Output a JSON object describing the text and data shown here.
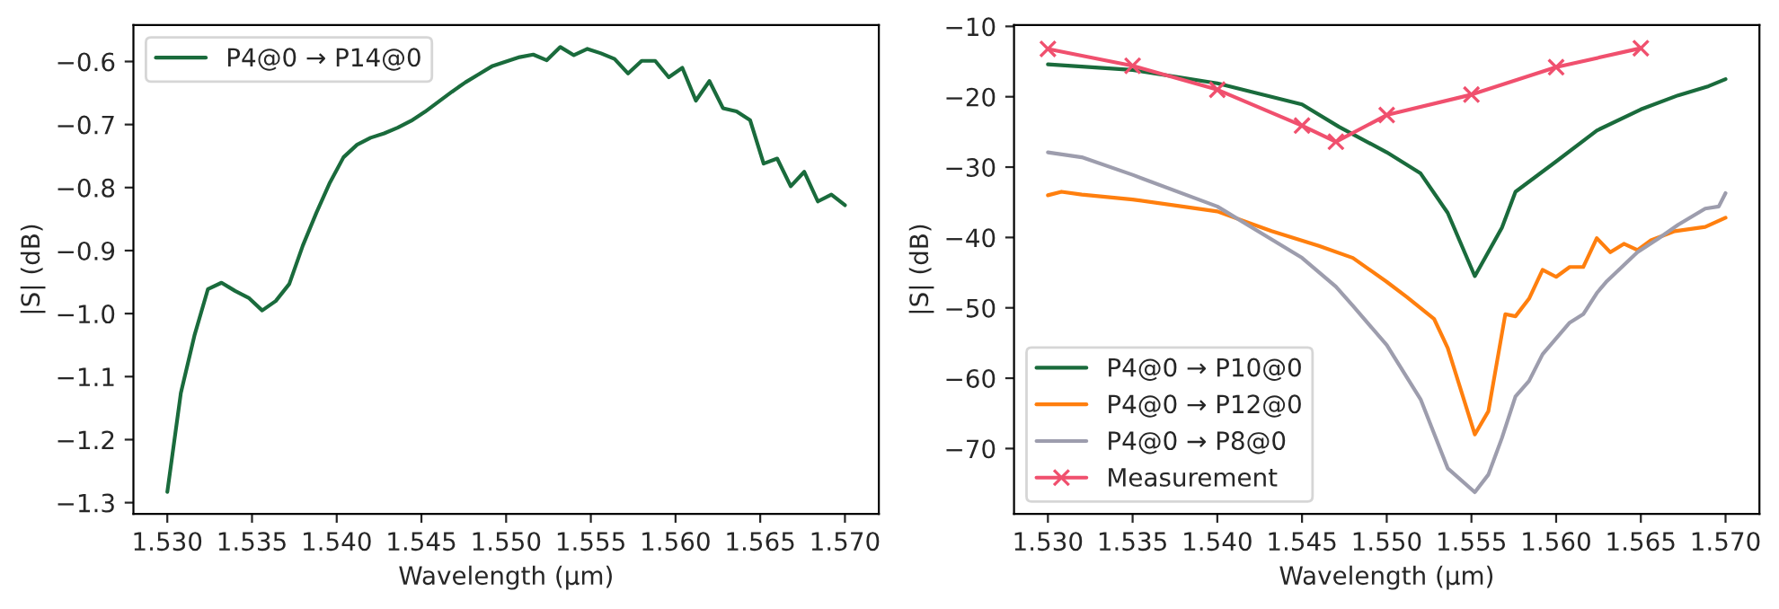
{
  "chart_data": [
    {
      "type": "line",
      "xlabel": "Wavelength (µm)",
      "ylabel": "|S| (dB)",
      "legend": "top left",
      "xlim": [
        1.528,
        1.572
      ],
      "xticks": [
        {
          "value": 1.53,
          "label": "1.530"
        },
        {
          "value": 1.535,
          "label": "1.535"
        },
        {
          "value": 1.54,
          "label": "1.540"
        },
        {
          "value": 1.545,
          "label": "1.545"
        },
        {
          "value": 1.55,
          "label": "1.550"
        },
        {
          "value": 1.555,
          "label": "1.555"
        },
        {
          "value": 1.56,
          "label": "1.560"
        },
        {
          "value": 1.565,
          "label": "1.565"
        },
        {
          "value": 1.57,
          "label": "1.570"
        }
      ],
      "ylim": [
        -1.318,
        -0.542
      ],
      "yticks": [
        {
          "value": -1.3,
          "label": "−1.3"
        },
        {
          "value": -1.2,
          "label": "−1.2"
        },
        {
          "value": -1.1,
          "label": "−1.1"
        },
        {
          "value": -1.0,
          "label": "−1.0"
        },
        {
          "value": -0.9,
          "label": "−0.9"
        },
        {
          "value": -0.8,
          "label": "−0.8"
        },
        {
          "value": -0.7,
          "label": "−0.7"
        },
        {
          "value": -0.6,
          "label": "−0.6"
        }
      ],
      "x": [
        1.53,
        1.5308,
        1.5316,
        1.5324,
        1.5332,
        1.534,
        1.5348,
        1.5356,
        1.5364,
        1.5372,
        1.538,
        1.5388,
        1.5396,
        1.5404,
        1.5412,
        1.542,
        1.5428,
        1.5436,
        1.5444,
        1.5452,
        1.546,
        1.5468,
        1.5476,
        1.5484,
        1.5492,
        1.55,
        1.5508,
        1.5516,
        1.5524,
        1.5532,
        1.554,
        1.5548,
        1.5556,
        1.5564,
        1.5572,
        1.558,
        1.5588,
        1.5596,
        1.5604,
        1.5612,
        1.562,
        1.5628,
        1.5636,
        1.5644,
        1.5652,
        1.566,
        1.5668,
        1.5676,
        1.5684,
        1.5692,
        1.57
      ],
      "series": [
        {
          "name": "P4@0 → P14@0",
          "color": "#1a6b3c",
          "values": [
            -1.283,
            -1.126,
            -1.035,
            -0.961,
            -0.951,
            -0.964,
            -0.975,
            -0.995,
            -0.98,
            -0.953,
            -0.892,
            -0.84,
            -0.792,
            -0.752,
            -0.732,
            -0.721,
            -0.714,
            -0.705,
            -0.694,
            -0.68,
            -0.664,
            -0.648,
            -0.633,
            -0.62,
            -0.607,
            -0.6,
            -0.593,
            -0.589,
            -0.598,
            -0.577,
            -0.59,
            -0.58,
            -0.587,
            -0.596,
            -0.619,
            -0.599,
            -0.599,
            -0.625,
            -0.61,
            -0.662,
            -0.631,
            -0.674,
            -0.679,
            -0.693,
            -0.762,
            -0.754,
            -0.798,
            -0.775,
            -0.822,
            -0.811,
            -0.828
          ]
        }
      ]
    },
    {
      "type": "line",
      "xlabel": "Wavelength (µm)",
      "ylabel": "|S| (dB)",
      "legend": "bottom left",
      "xlim": [
        1.528,
        1.572
      ],
      "xticks": [
        {
          "value": 1.53,
          "label": "1.530"
        },
        {
          "value": 1.535,
          "label": "1.535"
        },
        {
          "value": 1.54,
          "label": "1.540"
        },
        {
          "value": 1.545,
          "label": "1.545"
        },
        {
          "value": 1.55,
          "label": "1.550"
        },
        {
          "value": 1.555,
          "label": "1.555"
        },
        {
          "value": 1.56,
          "label": "1.560"
        },
        {
          "value": 1.565,
          "label": "1.565"
        },
        {
          "value": 1.57,
          "label": "1.570"
        }
      ],
      "ylim": [
        -79.3,
        -9.8
      ],
      "yticks": [
        {
          "value": -70,
          "label": "−70"
        },
        {
          "value": -60,
          "label": "−60"
        },
        {
          "value": -50,
          "label": "−50"
        },
        {
          "value": -40,
          "label": "−40"
        },
        {
          "value": -30,
          "label": "−30"
        },
        {
          "value": -20,
          "label": "−20"
        },
        {
          "value": -10,
          "label": "−10"
        }
      ],
      "series": [
        {
          "name": "P4@0 → P10@0",
          "color": "#1a6b3c",
          "x": [
            1.53,
            1.535,
            1.54,
            1.545,
            1.5472,
            1.55,
            1.552,
            1.5536,
            1.5552,
            1.5568,
            1.5576,
            1.56,
            1.5624,
            1.565,
            1.5672,
            1.569,
            1.57
          ],
          "values": [
            -15.4,
            -16.2,
            -18.1,
            -21.1,
            -24.3,
            -27.9,
            -30.9,
            -36.5,
            -45.5,
            -38.6,
            -33.5,
            -29.2,
            -24.8,
            -21.8,
            -19.8,
            -18.5,
            -17.5
          ]
        },
        {
          "name": "P4@0 → P12@0",
          "color": "#ff7f0e",
          "x": [
            1.53,
            1.5308,
            1.532,
            1.535,
            1.54,
            1.5432,
            1.546,
            1.548,
            1.55,
            1.5512,
            1.5528,
            1.5536,
            1.5552,
            1.556,
            1.557,
            1.5576,
            1.5584,
            1.5592,
            1.56,
            1.5608,
            1.5616,
            1.5624,
            1.5632,
            1.564,
            1.5648,
            1.5656,
            1.567,
            1.5688,
            1.57
          ],
          "values": [
            -34.0,
            -33.5,
            -33.9,
            -34.6,
            -36.3,
            -39.1,
            -41.2,
            -42.9,
            -46.3,
            -48.5,
            -51.6,
            -55.7,
            -68.0,
            -64.7,
            -50.9,
            -51.2,
            -48.7,
            -44.6,
            -45.6,
            -44.2,
            -44.2,
            -40.1,
            -42.1,
            -40.9,
            -41.8,
            -40.4,
            -39.1,
            -38.5,
            -37.2
          ]
        },
        {
          "name": "P4@0 → P8@0",
          "color": "#9d9dad",
          "x": [
            1.53,
            1.532,
            1.535,
            1.54,
            1.545,
            1.547,
            1.548,
            1.55,
            1.552,
            1.5536,
            1.5552,
            1.556,
            1.5568,
            1.5576,
            1.5584,
            1.5592,
            1.5608,
            1.5616,
            1.5624,
            1.563,
            1.5648,
            1.566,
            1.5672,
            1.5688,
            1.5696,
            1.57
          ],
          "values": [
            -27.9,
            -28.6,
            -31.1,
            -35.6,
            -42.9,
            -47.0,
            -49.7,
            -55.3,
            -63.0,
            -72.8,
            -76.2,
            -73.7,
            -68.5,
            -62.6,
            -60.4,
            -56.6,
            -52.1,
            -50.9,
            -47.9,
            -46.2,
            -42.1,
            -40.2,
            -38.2,
            -35.9,
            -35.6,
            -33.7
          ]
        },
        {
          "name": "Measurement",
          "color": "#f0506e",
          "marker": "cross",
          "x": [
            1.53,
            1.535,
            1.54,
            1.545,
            1.547,
            1.55,
            1.555,
            1.56,
            1.565
          ],
          "values": [
            -13.2,
            -15.6,
            -19.0,
            -24.1,
            -26.4,
            -22.6,
            -19.7,
            -15.8,
            -13.1
          ]
        }
      ]
    }
  ]
}
